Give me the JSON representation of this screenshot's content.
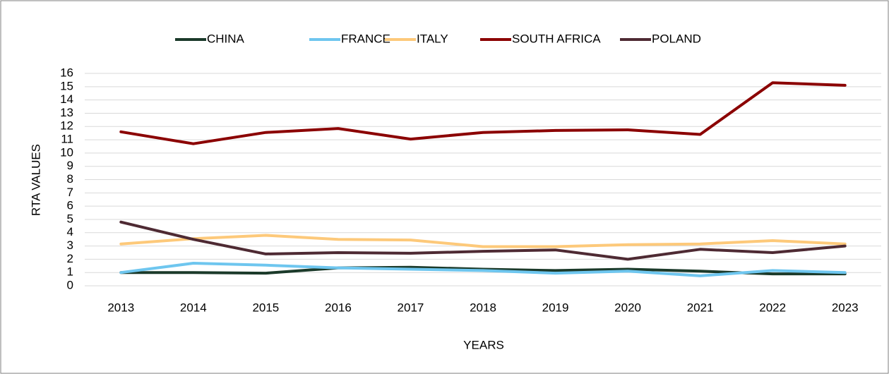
{
  "chart_data": {
    "type": "line",
    "categories": [
      "2013",
      "2014",
      "2015",
      "2016",
      "2017",
      "2018",
      "2019",
      "2020",
      "2021",
      "2022",
      "2023"
    ],
    "series": [
      {
        "name": "CHINA",
        "color": "#1b3a2a",
        "values": [
          1.0,
          1.0,
          0.95,
          1.35,
          1.4,
          1.25,
          1.15,
          1.25,
          1.1,
          0.9,
          0.9
        ]
      },
      {
        "name": "FRANCE",
        "color": "#6ec6ef",
        "values": [
          1.0,
          1.7,
          1.55,
          1.35,
          1.25,
          1.15,
          0.95,
          1.1,
          0.75,
          1.15,
          1.0
        ]
      },
      {
        "name": "ITALY",
        "color": "#fdc97a",
        "values": [
          3.15,
          3.55,
          3.8,
          3.5,
          3.45,
          2.95,
          2.95,
          3.1,
          3.15,
          3.4,
          3.15
        ]
      },
      {
        "name": "SOUTH AFRICA",
        "color": "#8b0000",
        "values": [
          11.6,
          10.7,
          11.55,
          11.85,
          11.05,
          11.55,
          11.7,
          11.75,
          11.4,
          15.3,
          15.1
        ]
      },
      {
        "name": "POLAND",
        "color": "#4e2a33",
        "values": [
          4.8,
          3.5,
          2.4,
          2.5,
          2.45,
          2.6,
          2.7,
          2.0,
          2.75,
          2.5,
          3.0
        ]
      }
    ],
    "x_label": "YEARS",
    "y_label": "RTA VALUES",
    "ylim": [
      0,
      16
    ],
    "yticks": [
      0,
      1,
      2,
      3,
      4,
      5,
      6,
      7,
      8,
      9,
      10,
      11,
      12,
      13,
      14,
      15,
      16
    ],
    "grid": true,
    "legend": "top"
  }
}
